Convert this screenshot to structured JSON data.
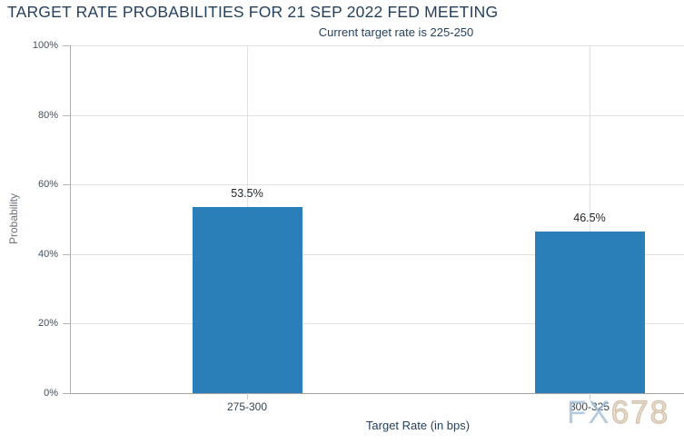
{
  "chart_data": {
    "type": "bar",
    "title": "TARGET RATE PROBABILITIES FOR 21 SEP 2022 FED MEETING",
    "subtitle": "Current target rate is 225-250",
    "categories": [
      "275-300",
      "300-325"
    ],
    "values": [
      53.5,
      46.5
    ],
    "value_labels": [
      "53.5%",
      "46.5%"
    ],
    "xlabel": "Target Rate (in bps)",
    "ylabel": "Probability",
    "ylim": [
      0,
      100
    ],
    "yticks": [
      "0%",
      "20%",
      "40%",
      "60%",
      "80%",
      "100%"
    ],
    "grid": true,
    "legend": "none",
    "bar_color": "#2a7fb9"
  },
  "watermark": {
    "part1": "FX",
    "part2": "678"
  }
}
